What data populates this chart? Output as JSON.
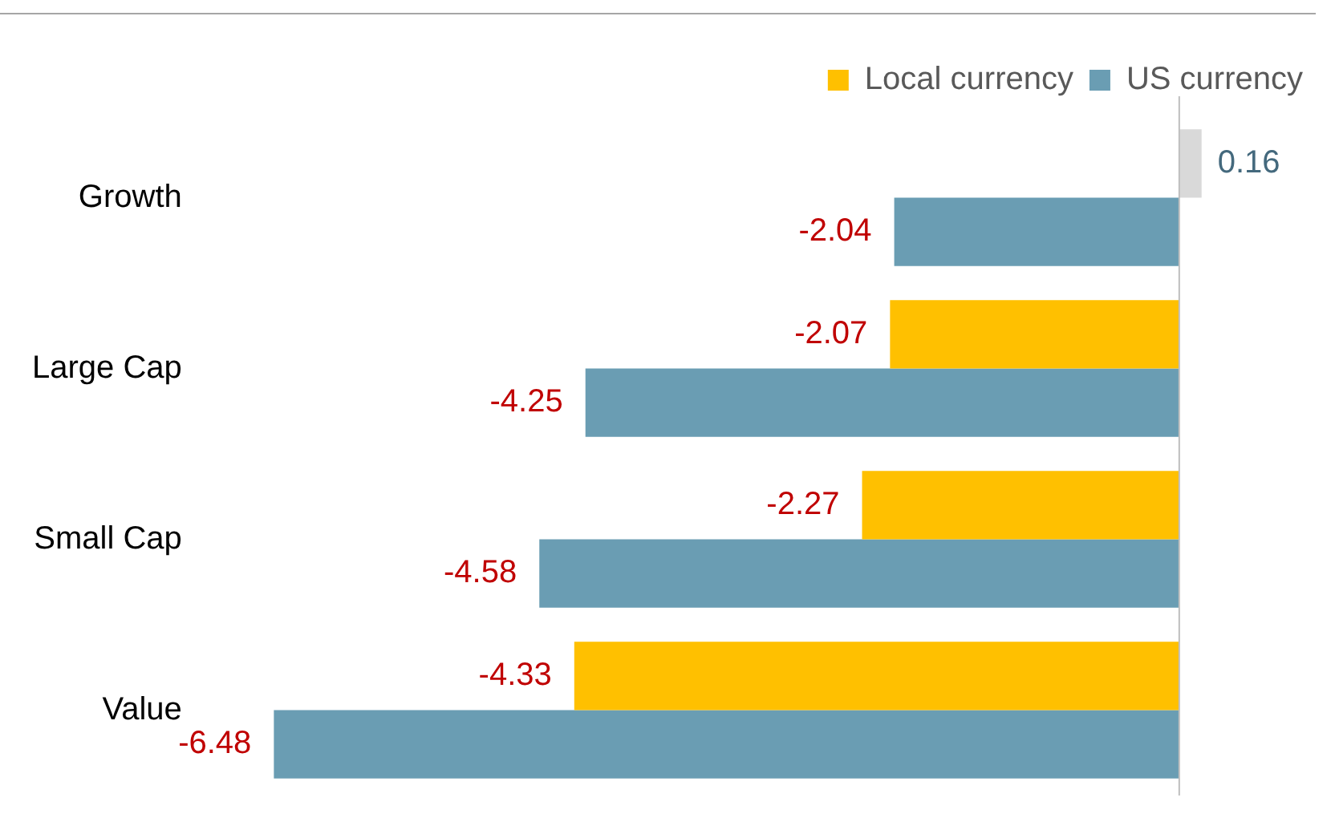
{
  "chart_data": {
    "type": "bar",
    "orientation": "horizontal",
    "categories": [
      "Growth",
      "Large Cap",
      "Small Cap",
      "Value"
    ],
    "series": [
      {
        "name": "Local currency",
        "color": "#ffc000",
        "colors": [
          "#d9d9d9",
          "#ffc000",
          "#ffc000",
          "#ffc000"
        ],
        "values": [
          0.16,
          -2.07,
          -2.27,
          -4.33
        ]
      },
      {
        "name": "US currency",
        "color": "#6a9db3",
        "values": [
          -2.04,
          -4.25,
          -4.58,
          -6.48
        ]
      }
    ],
    "data_labels": true,
    "legend": "top right",
    "tick_labels": "y",
    "grid": false
  }
}
